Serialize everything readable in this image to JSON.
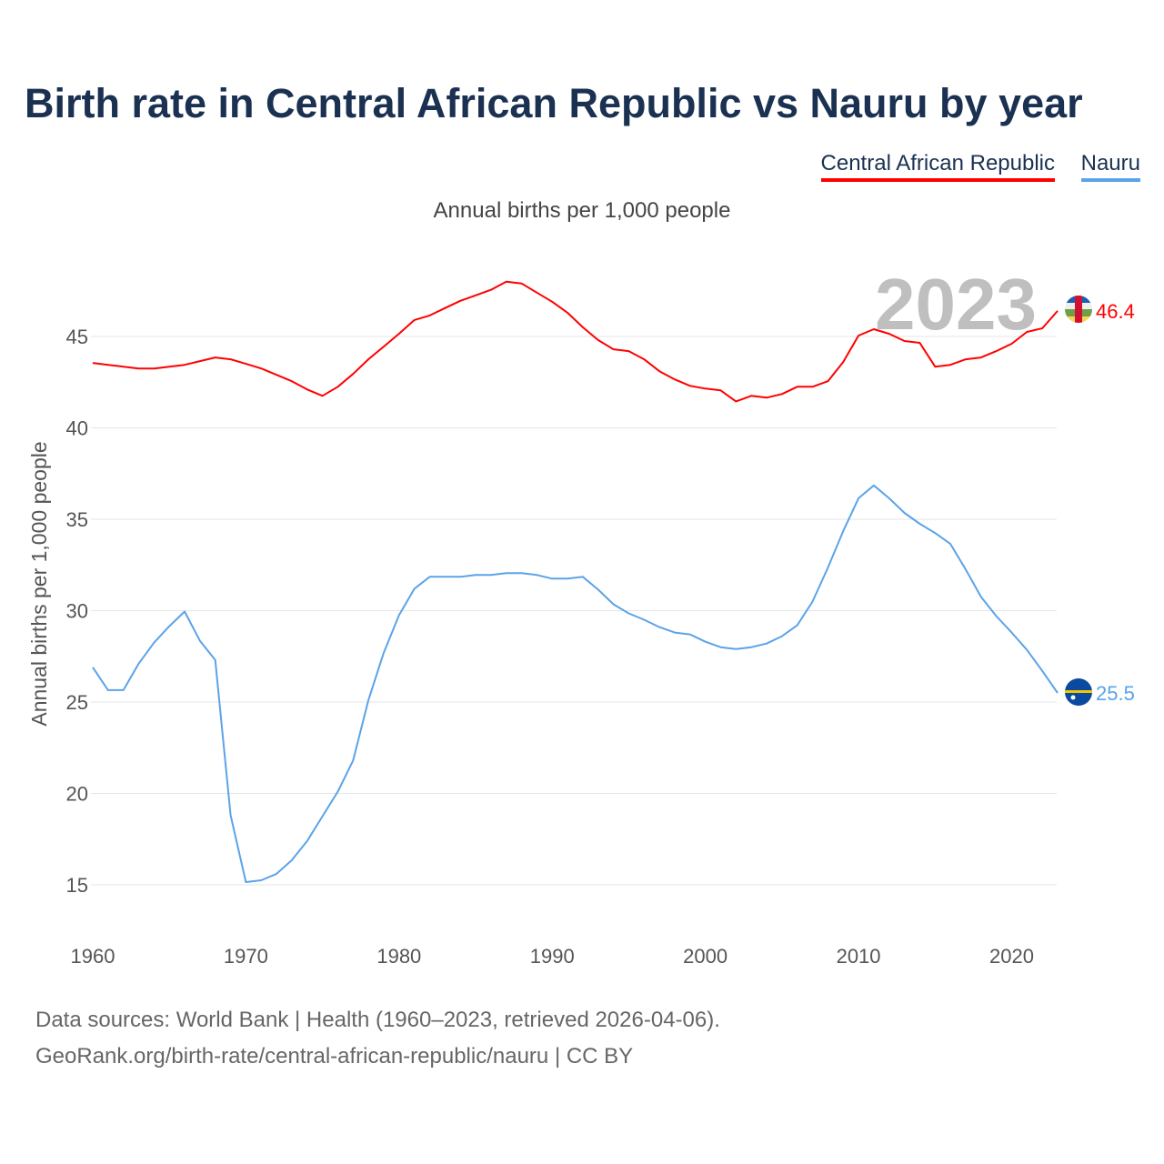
{
  "title": "Birth rate in Central African Republic vs Nauru by year",
  "legend": [
    "Central African Republic",
    "Nauru"
  ],
  "subtitle": "Annual births per 1,000 people",
  "footer": {
    "line1": "Data sources: World Bank | Health (1960–2023, retrieved 2026-04-06).",
    "line2": "GeoRank.org/birth-rate/central-african-republic/nauru | CC BY"
  },
  "chart_data": {
    "type": "line",
    "title": "Birth rate in Central African Republic vs Nauru by year",
    "subtitle": "Annual births per 1,000 people",
    "xlabel": "",
    "ylabel": "Annual births per 1,000 people",
    "xlim": [
      1960,
      2023
    ],
    "ylim": [
      12.5,
      49
    ],
    "x_ticks": [
      "1960",
      "1970",
      "1980",
      "1990",
      "2000",
      "2010",
      "2020"
    ],
    "y_ticks": [
      "15",
      "20",
      "25",
      "30",
      "35",
      "40",
      "45"
    ],
    "grid": true,
    "legend_position": "top-right",
    "year_label": "2023",
    "x": [
      1960,
      1961,
      1962,
      1963,
      1964,
      1965,
      1966,
      1967,
      1968,
      1969,
      1970,
      1971,
      1972,
      1973,
      1974,
      1975,
      1976,
      1977,
      1978,
      1979,
      1980,
      1981,
      1982,
      1983,
      1984,
      1985,
      1986,
      1987,
      1988,
      1989,
      1990,
      1991,
      1992,
      1993,
      1994,
      1995,
      1996,
      1997,
      1998,
      1999,
      2000,
      2001,
      2002,
      2003,
      2004,
      2005,
      2006,
      2007,
      2008,
      2009,
      2010,
      2011,
      2012,
      2013,
      2014,
      2015,
      2016,
      2017,
      2018,
      2019,
      2020,
      2021,
      2022,
      2023
    ],
    "series": [
      {
        "name": "Central African Republic",
        "color": "#ff0000",
        "end_label": "46.4",
        "values": [
          43.55,
          43.45,
          43.35,
          43.25,
          43.25,
          43.35,
          43.45,
          43.65,
          43.85,
          43.75,
          43.5,
          43.25,
          42.9,
          42.55,
          42.1,
          41.75,
          42.25,
          42.95,
          43.75,
          44.45,
          45.15,
          45.9,
          46.15,
          46.55,
          46.95,
          47.25,
          47.55,
          48.0,
          47.9,
          47.4,
          46.9,
          46.3,
          45.5,
          44.8,
          44.3,
          44.2,
          43.75,
          43.1,
          42.65,
          42.3,
          42.15,
          42.05,
          41.45,
          41.75,
          41.65,
          41.85,
          42.25,
          42.25,
          42.55,
          43.6,
          45.05,
          45.4,
          45.15,
          44.75,
          44.65,
          43.35,
          43.45,
          43.75,
          43.85,
          44.2,
          44.6,
          45.25,
          45.45,
          46.4
        ]
      },
      {
        "name": "Nauru",
        "color": "#5ba3e8",
        "end_label": "25.5",
        "values": [
          26.9,
          25.65,
          25.65,
          27.1,
          28.25,
          29.15,
          29.95,
          28.35,
          27.3,
          18.8,
          15.15,
          15.25,
          15.6,
          16.35,
          17.4,
          18.75,
          20.1,
          21.8,
          25.1,
          27.7,
          29.75,
          31.2,
          31.85,
          31.85,
          31.85,
          31.95,
          31.95,
          32.05,
          32.05,
          31.95,
          31.75,
          31.75,
          31.85,
          31.15,
          30.35,
          29.85,
          29.5,
          29.1,
          28.8,
          28.7,
          28.3,
          28.0,
          27.9,
          28.0,
          28.2,
          28.6,
          29.2,
          30.5,
          32.35,
          34.35,
          36.15,
          36.85,
          36.15,
          35.35,
          34.75,
          34.25,
          33.65,
          32.25,
          30.75,
          29.7,
          28.8,
          27.85,
          26.7,
          25.5
        ]
      }
    ]
  }
}
